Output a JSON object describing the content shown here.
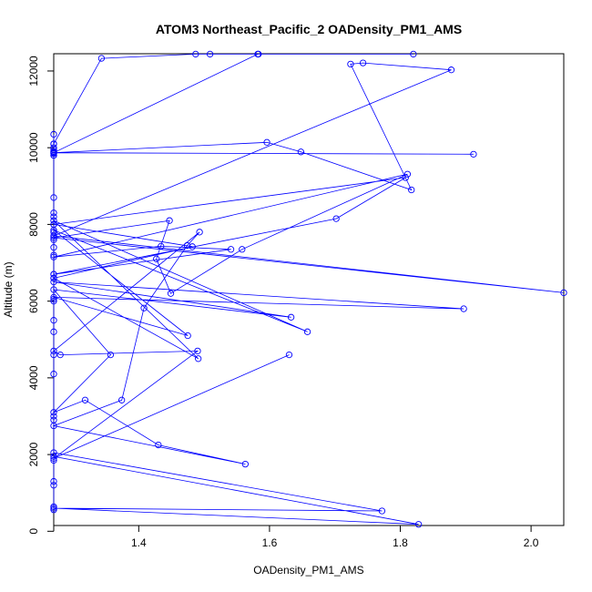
{
  "chart_data": {
    "type": "line",
    "title": "ATOM3 Northeast_Pacific_2 OADensity_PM1_AMS",
    "xlabel": "OADensity_PM1_AMS",
    "ylabel": "Altitude (m)",
    "xlim": [
      1.27,
      2.05
    ],
    "ylim": [
      150,
      12450
    ],
    "xticks": [
      1.4,
      1.6,
      1.8,
      2.0
    ],
    "xtick_labels": [
      "1.4",
      "1.6",
      "1.8",
      "2.0"
    ],
    "yticks": [
      0,
      2000,
      4000,
      6000,
      8000,
      10000,
      12000
    ],
    "ytick_labels": [
      "0",
      "2000",
      "4000",
      "6000",
      "8000",
      "10000",
      "12000"
    ],
    "grid": false,
    "color": "#0000ff",
    "series": [
      {
        "x": [
          1.27,
          1.27,
          1.27,
          1.27,
          1.27,
          1.27,
          1.828,
          1.27,
          1.772,
          1.27,
          1.27,
          1.27,
          1.27,
          1.27,
          1.27,
          1.27,
          1.27,
          1.27,
          1.27,
          1.27,
          1.27,
          1.27,
          1.27,
          1.27,
          1.27,
          1.27,
          1.27,
          1.27,
          1.27,
          1.27,
          1.27,
          1.27,
          1.27,
          1.27,
          1.27,
          1.27,
          1.27,
          1.27,
          1.27,
          1.27,
          1.343,
          1.487,
          1.583,
          1.82,
          1.509,
          1.582,
          1.27,
          1.912,
          1.27,
          1.596,
          1.648,
          1.817,
          1.724,
          1.743,
          1.878,
          1.27,
          2.05,
          1.27,
          1.447,
          1.427,
          1.449,
          1.558,
          1.811,
          1.27,
          1.434,
          1.541,
          1.27,
          1.702,
          1.808,
          1.27,
          1.482,
          1.27,
          1.491,
          1.27,
          1.658,
          1.27,
          1.475,
          1.27,
          1.897,
          1.27,
          1.633,
          1.27,
          1.357,
          1.27,
          1.318,
          1.43,
          1.563,
          1.27,
          1.374,
          1.408,
          1.474,
          1.493,
          1.27,
          1.28,
          1.49,
          1.27,
          1.63
        ],
        "y": [
          560,
          640,
          1200,
          1300,
          1850,
          1950,
          180,
          600,
          530,
          2050,
          2900,
          3000,
          4100,
          4600,
          5200,
          5500,
          6000,
          6050,
          6600,
          6700,
          7200,
          7400,
          7600,
          7700,
          7800,
          8000,
          8200,
          8300,
          8700,
          9800,
          9850,
          9900,
          9950,
          10000,
          9850,
          9800,
          9900,
          10100,
          10350,
          10100,
          12330,
          12440,
          12440,
          12440,
          12440,
          12440,
          9870,
          9830,
          9870,
          10140,
          9890,
          8900,
          12180,
          12210,
          12030,
          7700,
          6220,
          7650,
          8100,
          7100,
          6200,
          7350,
          9310,
          7150,
          7430,
          7350,
          6700,
          8150,
          9220,
          8000,
          7420,
          6600,
          4500,
          8100,
          5200,
          7850,
          5100,
          6100,
          5800,
          6500,
          5580,
          6300,
          4600,
          3100,
          3420,
          2250,
          1750,
          2750,
          3420,
          5820,
          7450,
          7800,
          4700,
          4600,
          4700,
          1900,
          4600
        ]
      }
    ]
  }
}
